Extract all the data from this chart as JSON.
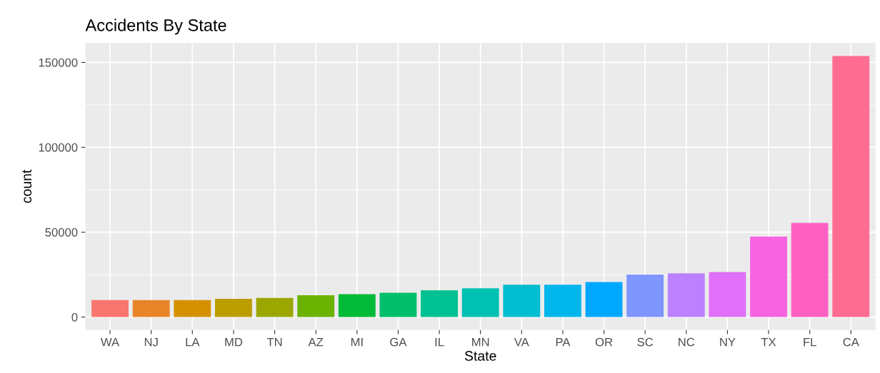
{
  "chart_data": {
    "type": "bar",
    "title": "Accidents By State",
    "xlabel": "State",
    "ylabel": "count",
    "categories": [
      "WA",
      "NJ",
      "LA",
      "MD",
      "TN",
      "AZ",
      "MI",
      "GA",
      "IL",
      "MN",
      "VA",
      "PA",
      "OR",
      "SC",
      "NC",
      "NY",
      "TX",
      "FL",
      "CA"
    ],
    "values": [
      10000,
      10000,
      10000,
      10700,
      11300,
      12800,
      13500,
      14300,
      15800,
      16900,
      19000,
      19000,
      20600,
      25000,
      25700,
      26500,
      47400,
      55500,
      153800
    ],
    "colors": [
      "#F8766D",
      "#E98429",
      "#D59100",
      "#BB9D00",
      "#9BA700",
      "#6CB200",
      "#00BA38",
      "#00BE6C",
      "#00C191",
      "#00C0B2",
      "#00BDD0",
      "#00B6EB",
      "#00A8FF",
      "#7F96FF",
      "#BB81FF",
      "#E070F8",
      "#F763E0",
      "#FF61C3",
      "#FF6C91"
    ],
    "ylim": [
      -7700,
      161500
    ],
    "yticks": [
      0,
      50000,
      100000,
      150000
    ],
    "grid": true
  }
}
